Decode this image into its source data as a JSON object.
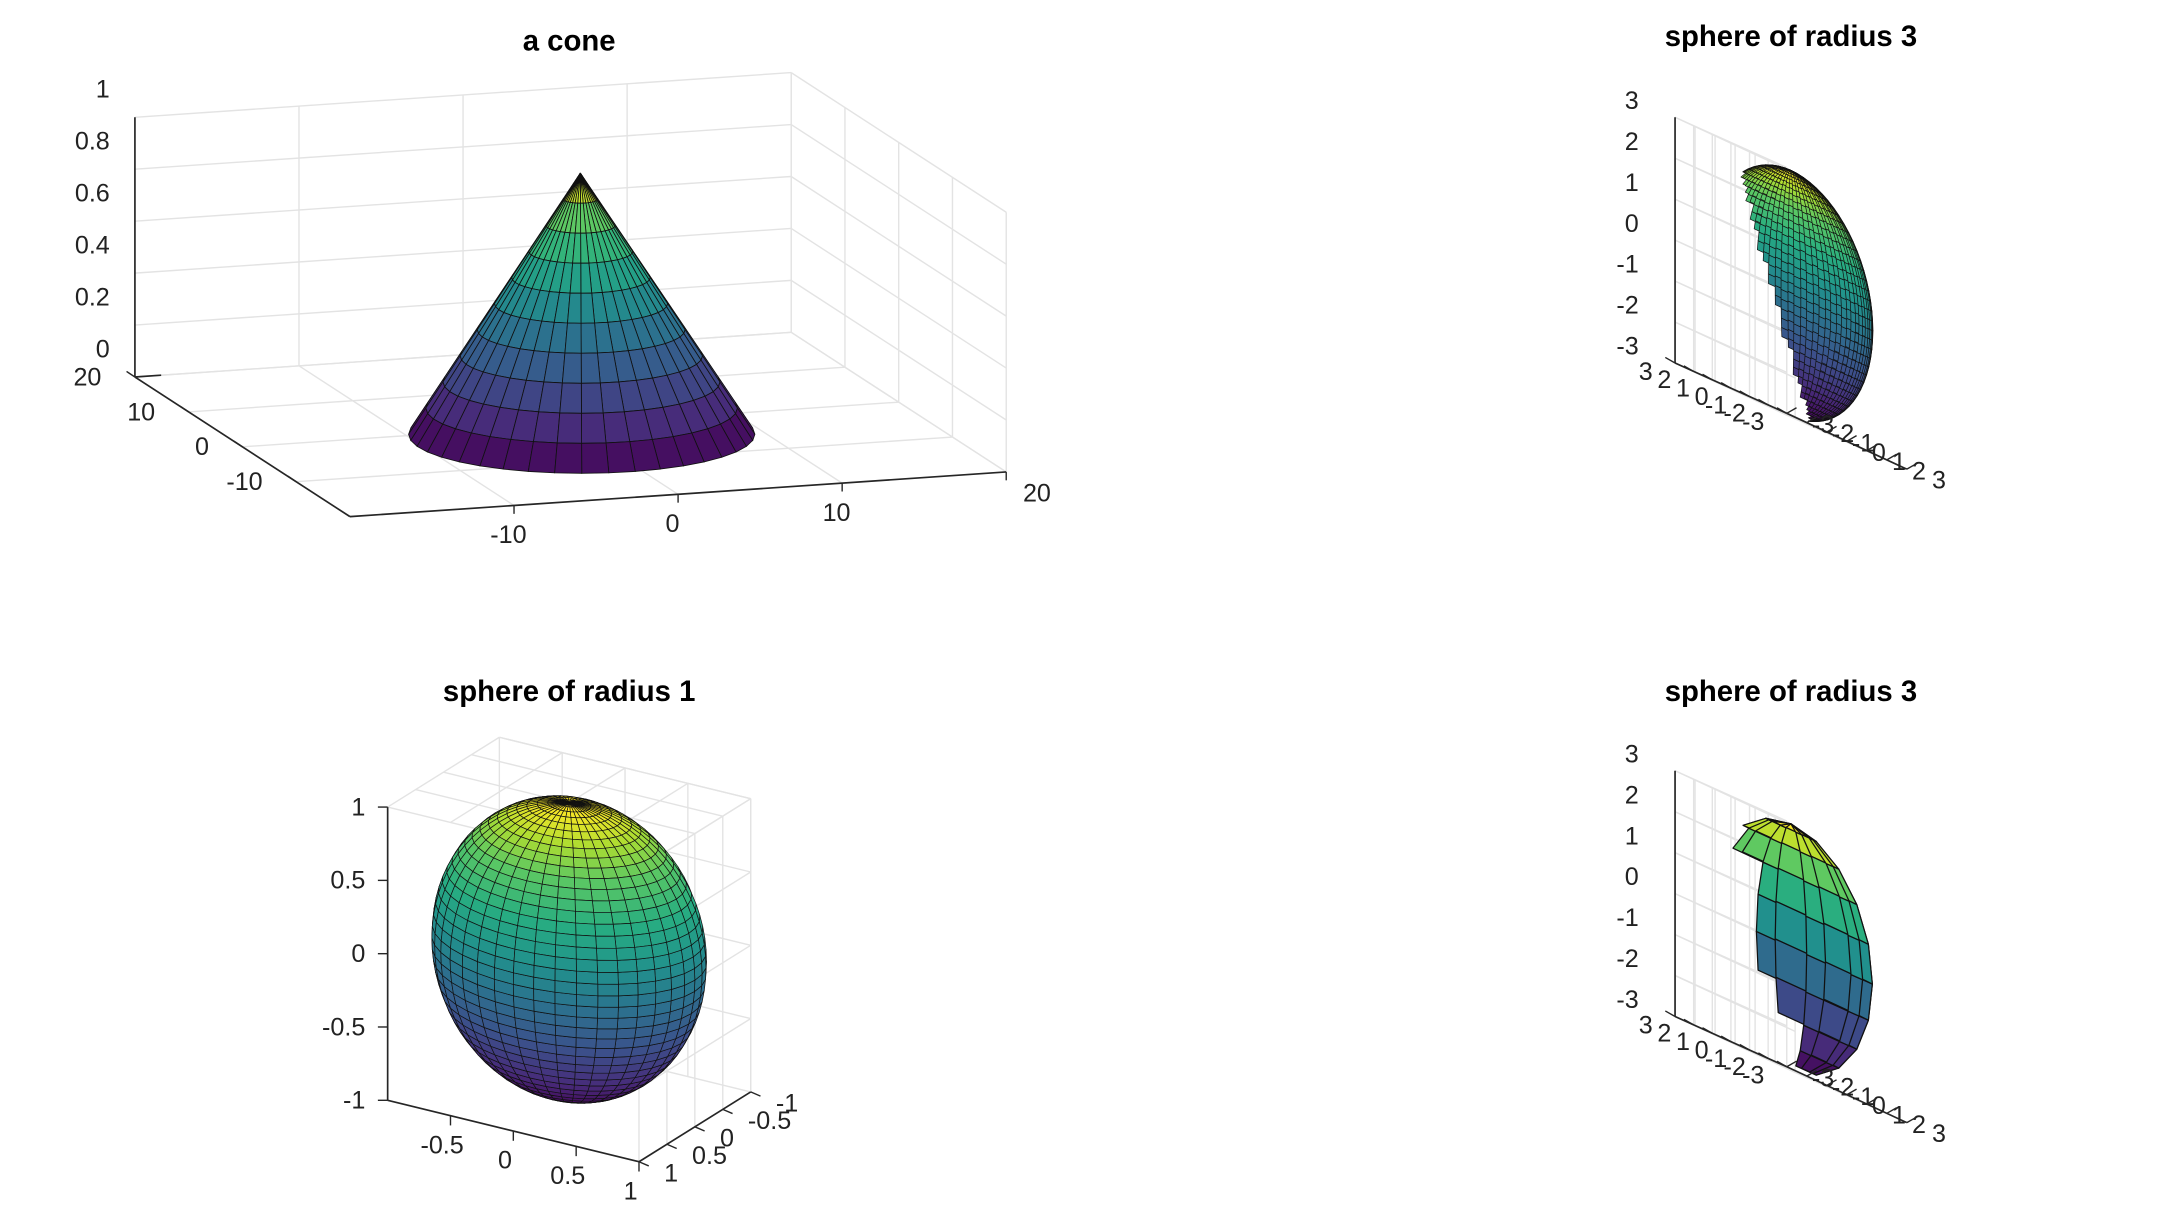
{
  "chart_data": [
    {
      "type": "surface",
      "title": "a cone",
      "colormap": "parula",
      "surface": "cone",
      "xlim": [
        -20,
        20
      ],
      "ylim": [
        -20,
        20
      ],
      "zlim": [
        0,
        1
      ],
      "xticks": [
        "-10",
        "0",
        "10",
        "20"
      ],
      "yticks": [
        "20",
        "10",
        "0",
        "-10"
      ],
      "zticks": [
        "1",
        "0.8",
        "0.6",
        "0.4",
        "0.2",
        "0"
      ],
      "grid": true
    },
    {
      "type": "surface",
      "title": "sphere of radius 3",
      "colormap": "parula",
      "surface": "sphere",
      "radius": 3,
      "mesh_n": 40,
      "xlim": [
        -3,
        3
      ],
      "ylim": [
        -3,
        3
      ],
      "zlim": [
        -3,
        3
      ],
      "xticks": [
        "-3",
        "-2",
        "-1",
        "0",
        "1",
        "2",
        "3"
      ],
      "yticks": [
        "3",
        "2",
        "1",
        "0",
        "-1",
        "-2",
        "-3"
      ],
      "zticks": [
        "3",
        "2",
        "1",
        "0",
        "-1",
        "-2",
        "-3"
      ],
      "grid": true
    },
    {
      "type": "surface",
      "title": "sphere of radius 1",
      "colormap": "parula",
      "surface": "sphere",
      "radius": 1,
      "mesh_n": 40,
      "xlim": [
        -1,
        1
      ],
      "ylim": [
        -1,
        1
      ],
      "zlim": [
        -1,
        1
      ],
      "xticks": [
        "-0.5",
        "0",
        "0.5",
        "1"
      ],
      "yticks": [
        "-1",
        "-0.5",
        "0",
        "0.5",
        "1"
      ],
      "zticks": [
        "1",
        "0.5",
        "0",
        "-0.5",
        "-1"
      ],
      "grid": true
    },
    {
      "type": "surface",
      "title": "sphere of radius 3",
      "colormap": "parula",
      "surface": "sphere",
      "radius": 3,
      "mesh_n": 10,
      "xlim": [
        -3,
        3
      ],
      "ylim": [
        -3,
        3
      ],
      "zlim": [
        -3,
        3
      ],
      "xticks": [
        "-3",
        "-2",
        "-1",
        "0",
        "1",
        "2",
        "3"
      ],
      "yticks": [
        "3",
        "2",
        "1",
        "0",
        "-1",
        "-2",
        "-3"
      ],
      "zticks": [
        "3",
        "2",
        "1",
        "0",
        "-1",
        "-2",
        "-3"
      ],
      "grid": true
    }
  ]
}
